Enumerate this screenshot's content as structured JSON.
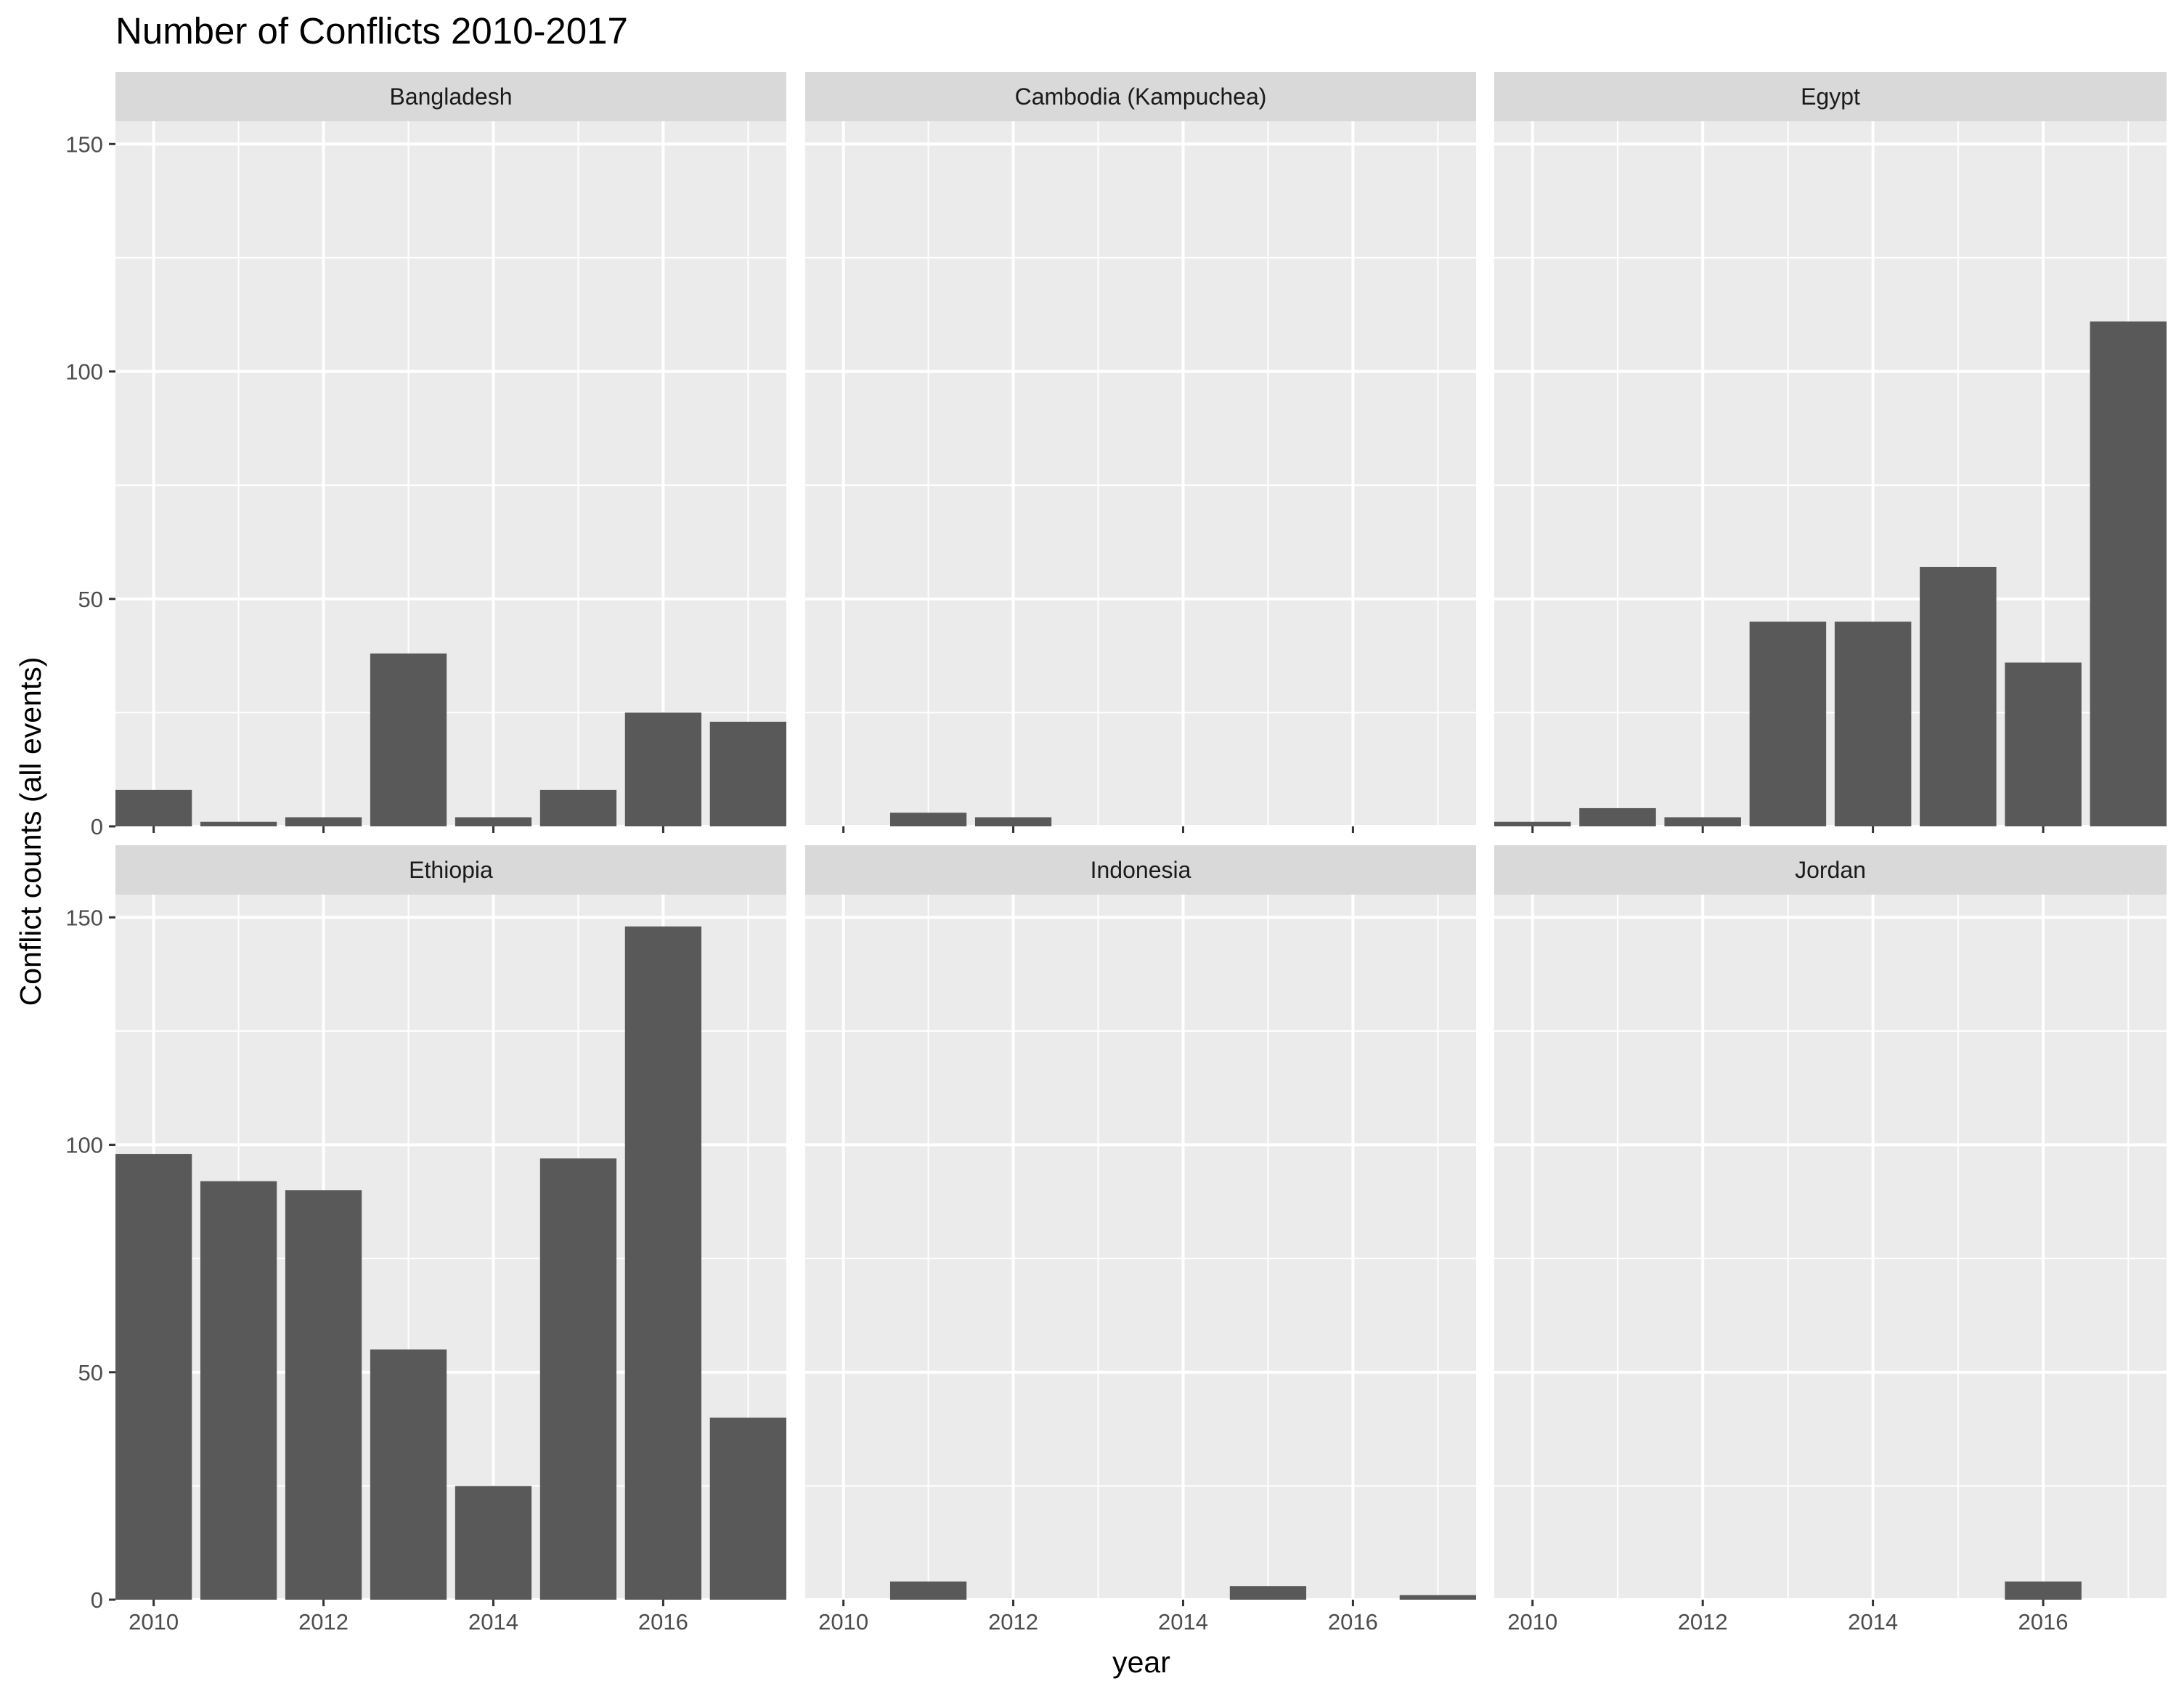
{
  "chart_data": {
    "type": "bar",
    "title": "Number of Conflicts 2010-2017",
    "xlabel": "year",
    "ylabel": "Conflict counts (all events)",
    "x_ticks": [
      "2010",
      "2012",
      "2014",
      "2016"
    ],
    "y_ticks": [
      "0",
      "50",
      "100",
      "150"
    ],
    "xlim": [
      2009.55,
      2017.45
    ],
    "ylim": [
      0,
      155
    ],
    "grid": true,
    "colors": {
      "bar": "#595959",
      "panel": "#ebebeb",
      "strip": "#d9d9d9",
      "grid": "#ffffff"
    },
    "panels": [
      {
        "name": "Bangladesh",
        "x": [
          2010,
          2011,
          2012,
          2013,
          2014,
          2015,
          2016,
          2017
        ],
        "values": [
          8,
          1,
          2,
          38,
          2,
          8,
          25,
          23
        ]
      },
      {
        "name": "Cambodia (Kampuchea)",
        "x": [
          2011,
          2012
        ],
        "values": [
          3,
          2
        ]
      },
      {
        "name": "Egypt",
        "x": [
          2010,
          2011,
          2012,
          2013,
          2014,
          2015,
          2016,
          2017
        ],
        "values": [
          1,
          4,
          2,
          45,
          45,
          57,
          36,
          111
        ]
      },
      {
        "name": "Ethiopia",
        "x": [
          2010,
          2011,
          2012,
          2013,
          2014,
          2015,
          2016,
          2017
        ],
        "values": [
          98,
          92,
          90,
          55,
          25,
          97,
          148,
          40
        ]
      },
      {
        "name": "Indonesia",
        "x": [
          2011,
          2015,
          2017
        ],
        "values": [
          4,
          3,
          1
        ]
      },
      {
        "name": "Jordan",
        "x": [
          2016
        ],
        "values": [
          4
        ]
      }
    ]
  }
}
